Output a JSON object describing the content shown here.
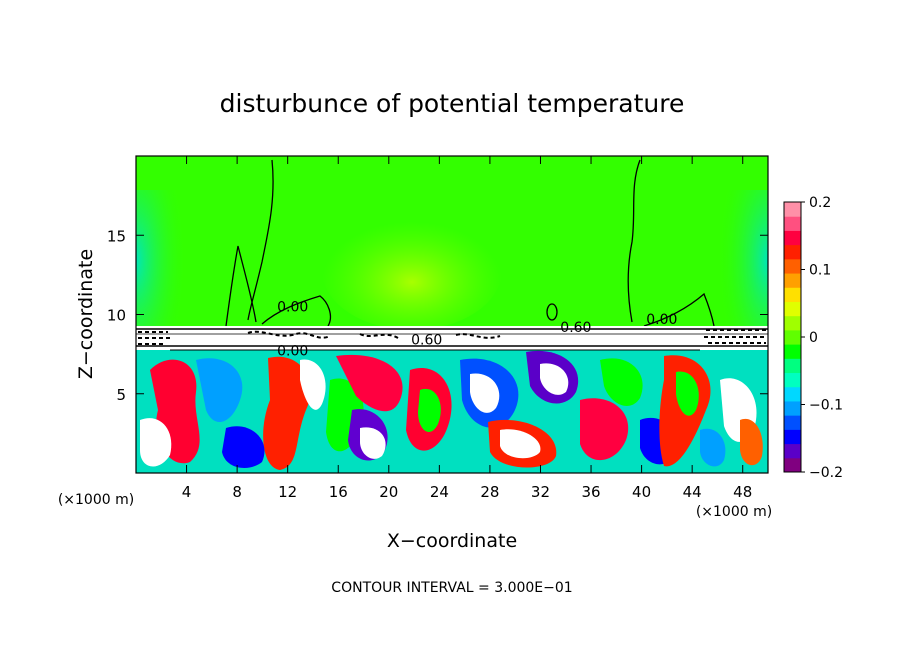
{
  "chart_data": {
    "type": "heatmap",
    "title": "disturbunce of potential temperature",
    "xlabel": "X−coordinate",
    "ylabel": "Z−coordinate",
    "x_unit": "(×1000 m)",
    "footer": "CONTOUR INTERVAL = 3.000E−01",
    "xlim": [
      0,
      50
    ],
    "ylim": [
      0,
      20
    ],
    "x_ticks": [
      4,
      8,
      12,
      16,
      20,
      24,
      28,
      32,
      36,
      40,
      44,
      48
    ],
    "y_ticks": [
      5,
      10,
      15
    ],
    "colorbar": {
      "range": [
        -0.2,
        0.2
      ],
      "ticks": [
        0.2,
        0.1,
        0,
        -0.1,
        -0.2
      ],
      "tick_labels": [
        "0.2",
        "0.1",
        "0",
        "−0.1",
        "−0.2"
      ],
      "colors": [
        "#800080",
        "#5a00c8",
        "#0000ff",
        "#0050ff",
        "#00a0ff",
        "#00d8ff",
        "#00ffc0",
        "#00ff80",
        "#00ff00",
        "#60ff00",
        "#a0ff00",
        "#e0ff00",
        "#ffe000",
        "#ffa000",
        "#ff6000",
        "#ff2000",
        "#ff0040",
        "#ff5080",
        "#ff90a8"
      ]
    },
    "contour_labels": [
      {
        "text": "0.00",
        "x": 12.4,
        "y": 10.2
      },
      {
        "text": "0.60",
        "x": 34.8,
        "y": 8.9
      },
      {
        "text": "0.00",
        "x": 41.6,
        "y": 9.4
      },
      {
        "text": "0.60",
        "x": 23.0,
        "y": 8.1
      },
      {
        "text": "0.00",
        "x": 12.4,
        "y": 7.4
      }
    ]
  },
  "colors": {
    "upper_field": "#33ff00",
    "ground_cyan": "#00e0c0"
  }
}
